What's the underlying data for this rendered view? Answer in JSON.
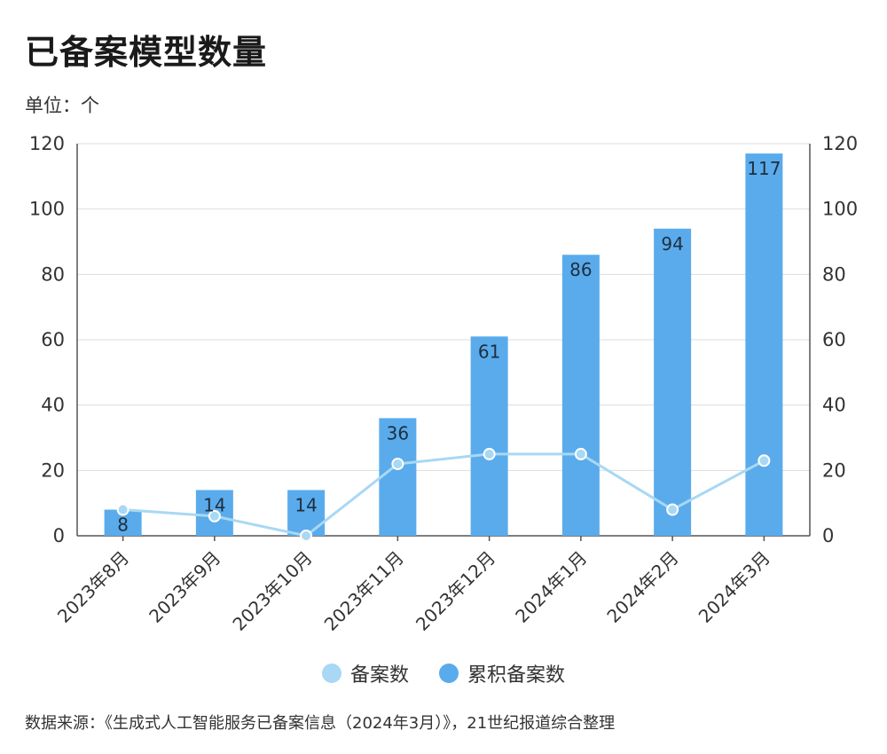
{
  "title": "已备案模型数量",
  "unit_label": "单位：个",
  "source": "数据来源：《生成式人工智能服务已备案信息（2024年3月）》，21世纪报道综合整理",
  "colors": {
    "bar": "#5aabec",
    "line": "#a8d8f4",
    "grid": "#dddddd",
    "axis": "#555555"
  },
  "chart_data": {
    "type": "bar",
    "categories": [
      "2023年8月",
      "2023年9月",
      "2023年10月",
      "2023年11月",
      "2023年12月",
      "2024年1月",
      "2024年2月",
      "2024年3月"
    ],
    "series": [
      {
        "name": "累积备案数",
        "type": "bar",
        "values": [
          8,
          14,
          14,
          36,
          61,
          86,
          94,
          117
        ]
      },
      {
        "name": "备案数",
        "type": "line",
        "values": [
          8,
          6,
          0,
          22,
          25,
          25,
          8,
          23
        ]
      }
    ],
    "yticks": [
      0,
      20,
      40,
      60,
      80,
      100,
      120
    ],
    "ylim": [
      0,
      120
    ],
    "y2ticks": [
      0,
      20,
      40,
      60,
      80,
      100,
      120
    ],
    "y2lim": [
      0,
      120
    ],
    "grid": true,
    "legend": [
      "备案数",
      "累积备案数"
    ],
    "legend_position": "bottom"
  }
}
